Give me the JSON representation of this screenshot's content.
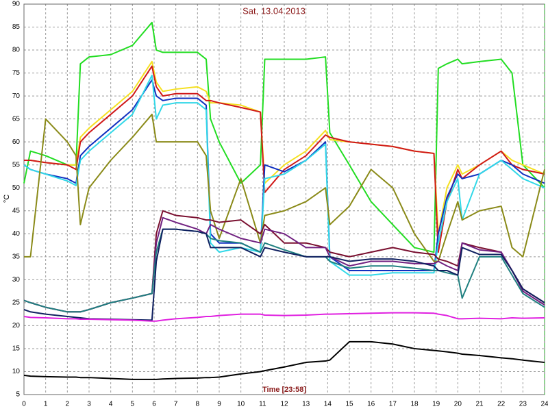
{
  "chart_data": {
    "type": "line",
    "title": "Sat, 13.04.2013",
    "x_label": "Time [23:58]",
    "y_label": "°C",
    "x": [
      0,
      0.3,
      1,
      2,
      2.4,
      2.6,
      3,
      4,
      5,
      5.9,
      6.1,
      6.4,
      7,
      8,
      8.4,
      8.6,
      9,
      10,
      10.9,
      11.1,
      12,
      13,
      13.9,
      14.1,
      15,
      16,
      17,
      18,
      18.9,
      19.1,
      19.5,
      20,
      20.2,
      21,
      22,
      22.5,
      23,
      24
    ],
    "xlim": [
      0,
      24
    ],
    "xticks": [
      0,
      1,
      2,
      3,
      4,
      5,
      6,
      7,
      8,
      9,
      10,
      11,
      12,
      13,
      14,
      15,
      16,
      17,
      18,
      19,
      20,
      21,
      22,
      23,
      24
    ],
    "ylim": [
      5,
      90
    ],
    "yticks": [
      5,
      10,
      15,
      20,
      25,
      30,
      35,
      40,
      45,
      50,
      55,
      60,
      65,
      70,
      75,
      80,
      85,
      90
    ],
    "grid": true,
    "series": [
      {
        "color": "#22dd22",
        "values": [
          51,
          58,
          57,
          55,
          55,
          77,
          78.5,
          79,
          81,
          86,
          80,
          79.5,
          79.5,
          79.5,
          78,
          65,
          60,
          51,
          55,
          78,
          78,
          78,
          78.5,
          62,
          55,
          47,
          42,
          37,
          36,
          76,
          77,
          78,
          77,
          77.5,
          78,
          75,
          55,
          50
        ]
      },
      {
        "color": "#f5e020",
        "values": [
          56,
          56,
          55.5,
          55,
          55,
          61,
          63,
          67,
          71,
          77.5,
          73,
          71,
          71.5,
          72,
          71,
          68.5,
          68.5,
          68,
          66.5,
          51,
          55,
          58,
          62.5,
          60.5,
          60,
          59.5,
          59,
          58,
          57.5,
          40,
          50,
          55,
          53,
          55,
          58,
          56,
          55,
          53
        ]
      },
      {
        "color": "#d01818",
        "values": [
          56,
          56,
          55.5,
          55,
          54,
          60,
          62,
          66,
          70,
          76.5,
          72,
          70,
          70.5,
          70.5,
          69,
          69,
          68.5,
          67.5,
          66.5,
          49,
          54,
          57,
          61.5,
          61,
          60,
          59.5,
          59,
          58,
          57.5,
          36,
          47,
          54,
          52,
          55,
          58,
          55,
          54,
          53
        ]
      },
      {
        "color": "#1030c0",
        "values": [
          55,
          54,
          53,
          52,
          51,
          57,
          59,
          63,
          67,
          73.5,
          70,
          69,
          69.5,
          69.5,
          68,
          40,
          38,
          38,
          36,
          55,
          53.5,
          56,
          60,
          35,
          32,
          32,
          32,
          32,
          32,
          40,
          48,
          53,
          52,
          53,
          56,
          55,
          53,
          51
        ]
      },
      {
        "color": "#30d8e8",
        "values": [
          55,
          54,
          53,
          51.5,
          50.5,
          56,
          58,
          62,
          66,
          74.5,
          65,
          68,
          68.5,
          68.5,
          67,
          38,
          36,
          37,
          36,
          52,
          53,
          56,
          59.5,
          34,
          31,
          31,
          31.5,
          31.5,
          31.5,
          38,
          47,
          52,
          43,
          53,
          56,
          54,
          52,
          50
        ]
      },
      {
        "color": "#8a8a18",
        "values": [
          35,
          35,
          65,
          60,
          57,
          42,
          50,
          56,
          61,
          66,
          60,
          60,
          60,
          60,
          57,
          45,
          39,
          52,
          38,
          44,
          45,
          47,
          50,
          42,
          46,
          54,
          50,
          40,
          34,
          34,
          40,
          47,
          43,
          45,
          46,
          37,
          35,
          54
        ]
      },
      {
        "color": "#7a1030",
        "values": [
          25.5,
          25,
          24,
          23,
          23,
          23,
          23.5,
          25,
          26,
          27,
          40,
          45,
          44,
          43.5,
          43,
          43,
          42.5,
          43,
          40,
          42,
          38,
          38,
          37,
          36,
          35,
          36,
          37,
          36,
          35.5,
          34.5,
          34,
          33,
          38,
          37,
          36,
          32,
          28,
          25
        ]
      },
      {
        "color": "#702080",
        "values": [
          25.5,
          25,
          24,
          23,
          23,
          23,
          23.5,
          25,
          26,
          27,
          38,
          43.5,
          42.5,
          41,
          40,
          42,
          41,
          39,
          38,
          41,
          40,
          37,
          37,
          35,
          33,
          34,
          34,
          33.5,
          33.5,
          34,
          33,
          32,
          38,
          36.5,
          36,
          32,
          27.5,
          24.5
        ]
      },
      {
        "color": "#208080",
        "values": [
          25.5,
          25,
          24,
          23,
          23,
          23,
          23.5,
          25,
          26,
          27,
          36,
          41,
          41,
          40.5,
          40,
          39,
          38.5,
          38,
          36,
          38,
          36.5,
          35,
          35,
          34,
          32.5,
          33,
          33,
          32.5,
          32,
          32,
          31.5,
          31,
          26,
          35,
          35,
          31,
          27,
          24
        ]
      },
      {
        "color": "#102060",
        "values": [
          23.5,
          23,
          22.5,
          22,
          21.8,
          21.7,
          21.5,
          21.4,
          21.3,
          21.2,
          34,
          41,
          41,
          40.5,
          40,
          37,
          37,
          37,
          35,
          37,
          36,
          35,
          35,
          35,
          34,
          34.5,
          34.5,
          34,
          33,
          32,
          32,
          31,
          37,
          35.5,
          35.5,
          32,
          28,
          25
        ]
      },
      {
        "color": "#e020e0",
        "values": [
          22,
          21.8,
          21.7,
          21.5,
          21.5,
          21.4,
          21.4,
          21.3,
          21.2,
          21,
          21,
          21.2,
          21.5,
          21.8,
          22,
          22,
          22.2,
          22.5,
          22.5,
          22.3,
          22.2,
          22.3,
          22.5,
          22.5,
          22.6,
          22.7,
          22.8,
          22.8,
          22.7,
          22.5,
          22.2,
          21.5,
          21.5,
          21.6,
          21.5,
          21.7,
          21.6,
          21.7
        ]
      },
      {
        "color": "#000000",
        "values": [
          9.2,
          9,
          8.9,
          8.8,
          8.8,
          8.7,
          8.7,
          8.5,
          8.3,
          8.3,
          8.3,
          8.4,
          8.5,
          8.6,
          8.7,
          8.7,
          8.8,
          9.5,
          10,
          10.2,
          11,
          12,
          12.3,
          12.5,
          16.5,
          16.5,
          16,
          15,
          14.6,
          14.5,
          14.3,
          14,
          13.8,
          13.5,
          13,
          12.8,
          12.5,
          12
        ]
      }
    ]
  }
}
